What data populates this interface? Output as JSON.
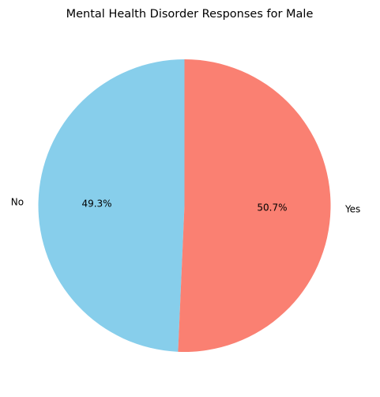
{
  "chart_data": {
    "type": "pie",
    "title": "Mental Health Disorder Responses for Male",
    "categories": [
      "No",
      "Yes"
    ],
    "values": [
      49.3,
      50.7
    ],
    "percent_labels": [
      "49.3%",
      "50.7%"
    ],
    "colors": [
      "#87CEEB",
      "#FA8072"
    ],
    "start_angle_deg": 90,
    "direction": "counterclockwise"
  }
}
